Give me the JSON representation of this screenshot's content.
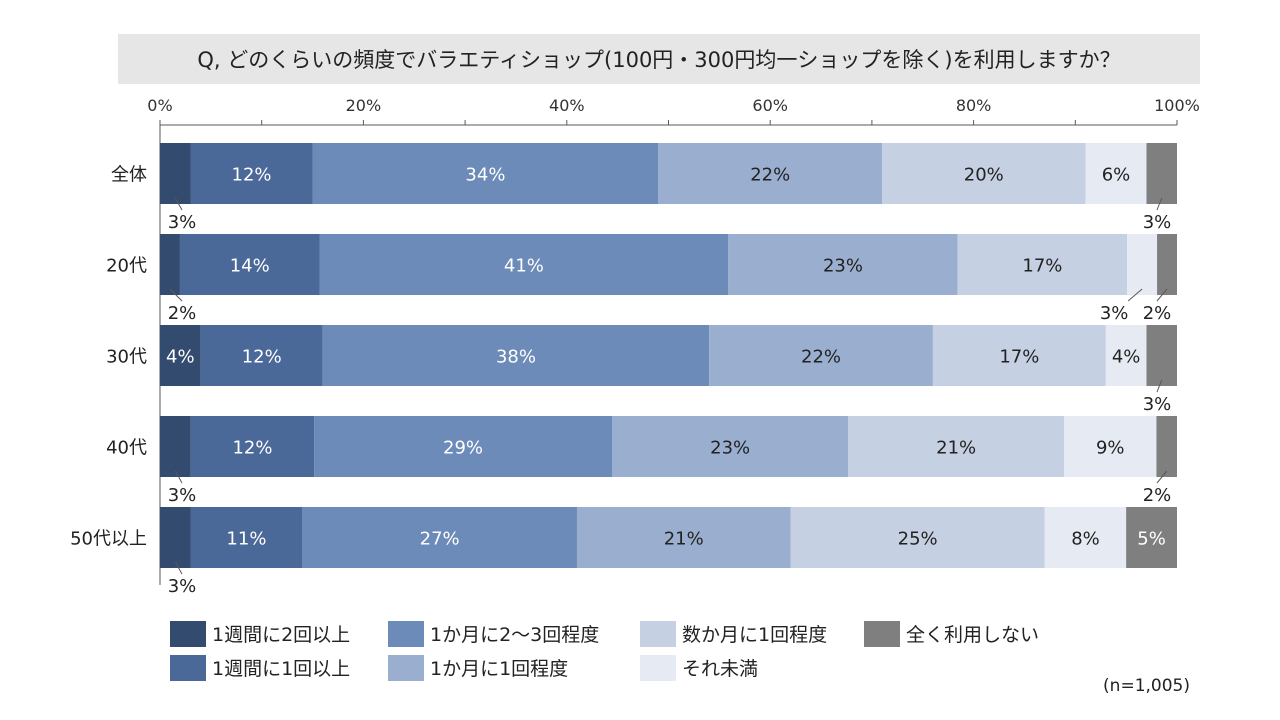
{
  "title": "Q, どのくらいの頻度でバラエティショップ(100円・300円均一ショップを除く)を利用しますか？",
  "note": "(n=1,005)",
  "colors": {
    "weekly_2plus": "#334b6e",
    "weekly_1plus": "#4a6898",
    "monthly_2to3": "#6c8bb8",
    "monthly_1": "#9aafcf",
    "few_months_1": "#c5d0e2",
    "less": "#e6ebf3",
    "never": "#7f7f7f"
  },
  "chart_data": {
    "type": "bar",
    "orientation": "horizontal",
    "stacked": true,
    "percent": true,
    "title": "Q, どのくらいの頻度でバラエティショップ(100円・300円均一ショップを除く)を利用しますか？",
    "xlim": [
      0,
      100
    ],
    "x_ticks": [
      "0%",
      "20%",
      "40%",
      "60%",
      "80%",
      "100%"
    ],
    "legend_position": "bottom",
    "categories": [
      "全体",
      "20代",
      "30代",
      "40代",
      "50代以上"
    ],
    "series": [
      {
        "key": "weekly_2plus",
        "name": "1週間に2回以上",
        "values": [
          3,
          2,
          4,
          3,
          3
        ],
        "labels": [
          "3%",
          "2%",
          "4%",
          "3%",
          "3%"
        ]
      },
      {
        "key": "weekly_1plus",
        "name": "1週間に1回以上",
        "values": [
          12,
          14,
          12,
          12,
          11
        ],
        "labels": [
          "12%",
          "14%",
          "12%",
          "12%",
          "11%"
        ]
      },
      {
        "key": "monthly_2to3",
        "name": "1か月に2～3回程度",
        "values": [
          34,
          41,
          38,
          29,
          27
        ],
        "labels": [
          "34%",
          "41%",
          "38%",
          "29%",
          "27%"
        ]
      },
      {
        "key": "monthly_1",
        "name": "1か月に1回程度",
        "values": [
          22,
          23,
          22,
          23,
          21
        ],
        "labels": [
          "22%",
          "23%",
          "22%",
          "23%",
          "21%"
        ]
      },
      {
        "key": "few_months_1",
        "name": "数か月に1回程度",
        "values": [
          20,
          17,
          17,
          21,
          25
        ],
        "labels": [
          "20%",
          "17%",
          "17%",
          "21%",
          "25%"
        ]
      },
      {
        "key": "less",
        "name": "それ未満",
        "values": [
          6,
          3,
          4,
          9,
          8
        ],
        "labels": [
          "6%",
          "3%",
          "4%",
          "9%",
          "8%"
        ]
      },
      {
        "key": "never",
        "name": "全く利用しない",
        "values": [
          3,
          2,
          3,
          2,
          5
        ],
        "labels": [
          "3%",
          "2%",
          "3%",
          "2%",
          "5%"
        ]
      }
    ]
  }
}
